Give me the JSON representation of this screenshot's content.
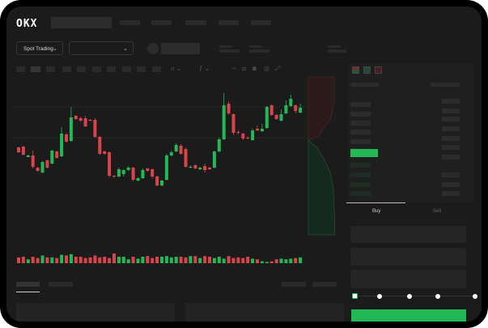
{
  "header": {
    "logo": "OKX",
    "nav_items": 5
  },
  "toolbar": {
    "market_select": "Spot Trading",
    "pair_select": ""
  },
  "trade_panel": {
    "tabs": [
      {
        "label": "Buy",
        "active": true
      },
      {
        "label": "Sell",
        "active": false
      }
    ],
    "slider_percent": 0,
    "slider_stops": 5
  },
  "colors": {
    "up": "#22b856",
    "down": "#d9434a",
    "background": "#1b1b1b",
    "accent": "#22b856"
  },
  "icons": [
    "logo",
    "chevron-down-icon",
    "chevron-down-icon",
    "line-tool-icon",
    "ruler-icon",
    "camera-icon",
    "settings-icon",
    "fullscreen-icon",
    "orderbook-both-icon",
    "orderbook-bids-icon",
    "orderbook-asks-icon"
  ],
  "chart_data": {
    "type": "candlestick",
    "candles": [
      [
        218,
        219,
        211,
        212
      ],
      [
        219,
        220,
        208,
        209
      ],
      [
        206,
        209,
        206,
        208
      ],
      [
        208,
        214,
        192,
        194
      ],
      [
        193,
        194,
        188,
        189
      ],
      [
        187,
        201,
        186,
        200
      ],
      [
        202,
        203,
        192,
        193
      ],
      [
        198,
        215,
        197,
        214
      ],
      [
        213,
        214,
        204,
        205
      ],
      [
        207,
        243,
        206,
        235
      ],
      [
        234,
        236,
        224,
        225
      ],
      [
        226,
        268,
        225,
        255
      ],
      [
        257,
        258,
        252,
        253
      ],
      [
        254,
        256,
        250,
        251
      ],
      [
        254,
        257,
        243,
        244
      ],
      [
        252,
        253,
        250,
        251
      ],
      [
        252,
        254,
        230,
        231
      ],
      [
        231,
        232,
        209,
        210
      ],
      [
        213,
        214,
        209,
        210
      ],
      [
        212,
        213,
        181,
        183
      ],
      [
        183,
        184,
        180,
        182
      ],
      [
        182,
        193,
        181,
        191
      ],
      [
        185,
        191,
        182,
        190
      ],
      [
        190,
        195,
        189,
        193
      ],
      [
        193,
        194,
        176,
        178
      ],
      [
        177,
        181,
        176,
        180
      ],
      [
        180,
        192,
        179,
        190
      ],
      [
        192,
        193,
        188,
        189
      ],
      [
        191,
        192,
        180,
        182
      ],
      [
        182,
        183,
        170,
        171
      ],
      [
        171,
        178,
        170,
        177
      ],
      [
        178,
        210,
        177,
        208
      ],
      [
        208,
        214,
        207,
        212
      ],
      [
        213,
        223,
        212,
        221
      ],
      [
        220,
        222,
        209,
        210
      ],
      [
        216,
        218,
        193,
        194
      ],
      [
        193,
        196,
        192,
        194
      ],
      [
        196,
        197,
        191,
        192
      ],
      [
        191,
        194,
        190,
        193
      ],
      [
        195,
        198,
        187,
        190
      ],
      [
        193,
        194,
        190,
        191
      ],
      [
        193,
        214,
        192,
        213
      ],
      [
        213,
        230,
        212,
        228
      ],
      [
        228,
        285,
        227,
        270
      ],
      [
        272,
        275,
        258,
        260
      ],
      [
        259,
        260,
        233,
        236
      ],
      [
        237,
        239,
        234,
        236
      ],
      [
        235,
        236,
        227,
        229
      ],
      [
        230,
        232,
        228,
        229
      ],
      [
        227,
        241,
        226,
        239
      ],
      [
        241,
        245,
        238,
        239
      ],
      [
        238,
        247,
        237,
        241
      ],
      [
        242,
        269,
        241,
        268
      ],
      [
        270,
        271,
        257,
        258
      ],
      [
        258,
        259,
        252,
        253
      ],
      [
        251,
        265,
        250,
        259
      ],
      [
        260,
        276,
        259,
        270
      ],
      [
        269,
        283,
        268,
        278
      ],
      [
        270,
        271,
        260,
        263
      ],
      [
        261,
        272,
        260,
        267
      ]
    ],
    "candle_format": [
      "open",
      "high",
      "low",
      "close"
    ],
    "volumes": [
      9,
      10,
      6,
      10,
      8,
      12,
      9,
      9,
      8,
      13,
      12,
      14,
      10,
      10,
      8,
      9,
      12,
      9,
      10,
      8,
      15,
      10,
      10,
      6,
      10,
      7,
      10,
      11,
      8,
      10,
      10,
      11,
      9,
      10,
      10,
      9,
      11,
      11,
      8,
      11,
      10,
      8,
      10,
      7,
      11,
      8,
      9,
      8,
      10,
      7,
      6,
      3,
      2,
      3,
      6,
      7,
      6,
      7,
      8,
      9
    ],
    "depth": {
      "asks": "red area upper",
      "bids": "green area lower"
    }
  }
}
